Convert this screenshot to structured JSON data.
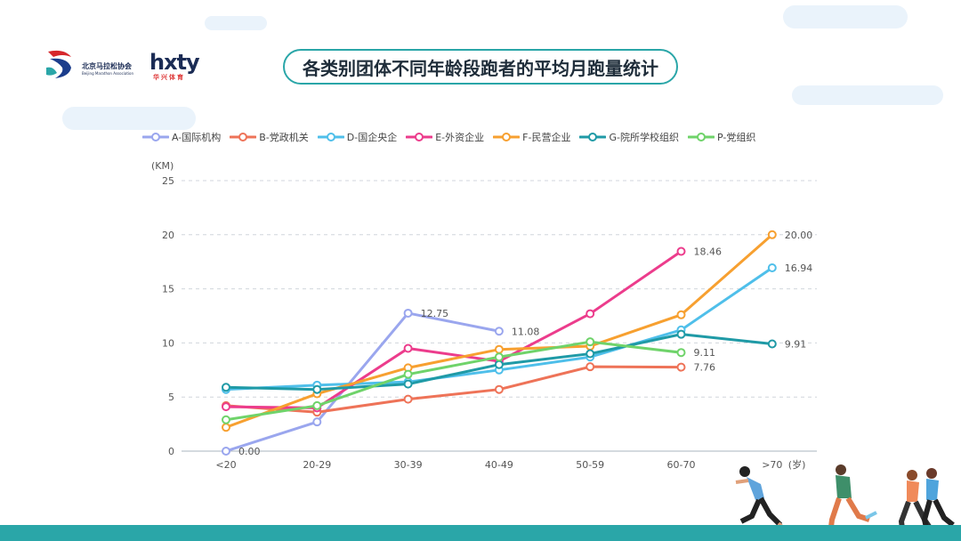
{
  "header": {
    "title": "各类别团体不同年龄段跑者的平均月跑量统计",
    "logo_left_cn": "北京马拉松协会",
    "logo_left_en": "Beijing Marathon Association",
    "logo_right": "hxty",
    "logo_right_sub": "华兴体育"
  },
  "colors": {
    "accent": "#2aa6a8",
    "title_text": "#1f2d3a"
  },
  "chart_data": {
    "type": "line",
    "title": "各类别团体不同年龄段跑者的平均月跑量统计",
    "xlabel": "(岁)",
    "ylabel": "(KM)",
    "categories": [
      "<20",
      "20-29",
      "30-39",
      "40-49",
      "50-59",
      "60-70",
      ">70"
    ],
    "ylim": [
      0,
      25
    ],
    "yticks": [
      "0",
      "5",
      "10",
      "15",
      "20",
      "25"
    ],
    "grid": "horizontal dashed",
    "legend_position": "top",
    "series": [
      {
        "name": "A-国际机构",
        "color": "#9aa6ee",
        "values": [
          0.0,
          2.7,
          12.75,
          11.08,
          null,
          null,
          null
        ],
        "labels": [
          "0.00",
          null,
          "12.75",
          "11.08",
          null,
          null,
          null
        ]
      },
      {
        "name": "B-党政机关",
        "color": "#ee7358",
        "values": [
          4.2,
          3.6,
          4.8,
          5.7,
          7.8,
          7.76,
          null
        ],
        "labels": [
          null,
          null,
          null,
          null,
          null,
          "7.76",
          null
        ]
      },
      {
        "name": "D-国企央企",
        "color": "#4fbfea",
        "values": [
          5.7,
          6.1,
          6.4,
          7.5,
          8.7,
          11.2,
          16.94
        ],
        "labels": [
          null,
          null,
          null,
          null,
          null,
          null,
          "16.94"
        ]
      },
      {
        "name": "E-外资企业",
        "color": "#ec3c8c",
        "values": [
          4.1,
          4.0,
          9.5,
          8.3,
          12.7,
          18.46,
          null
        ],
        "labels": [
          null,
          null,
          null,
          null,
          null,
          "18.46",
          null
        ]
      },
      {
        "name": "F-民营企业",
        "color": "#f7a030",
        "values": [
          2.2,
          5.3,
          7.7,
          9.4,
          9.7,
          12.6,
          20.0
        ],
        "labels": [
          null,
          null,
          null,
          null,
          null,
          null,
          "20.00"
        ]
      },
      {
        "name": "G-院所学校组织",
        "color": "#1f9aa6",
        "values": [
          5.9,
          5.7,
          6.2,
          8.0,
          9.0,
          10.8,
          9.91
        ],
        "labels": [
          null,
          null,
          null,
          null,
          null,
          null,
          "9.91"
        ]
      },
      {
        "name": "P-党组织",
        "color": "#6fd36a",
        "values": [
          2.9,
          4.2,
          7.1,
          8.7,
          10.1,
          9.11,
          null
        ],
        "labels": [
          null,
          null,
          null,
          null,
          null,
          "9.11",
          null
        ]
      }
    ]
  }
}
